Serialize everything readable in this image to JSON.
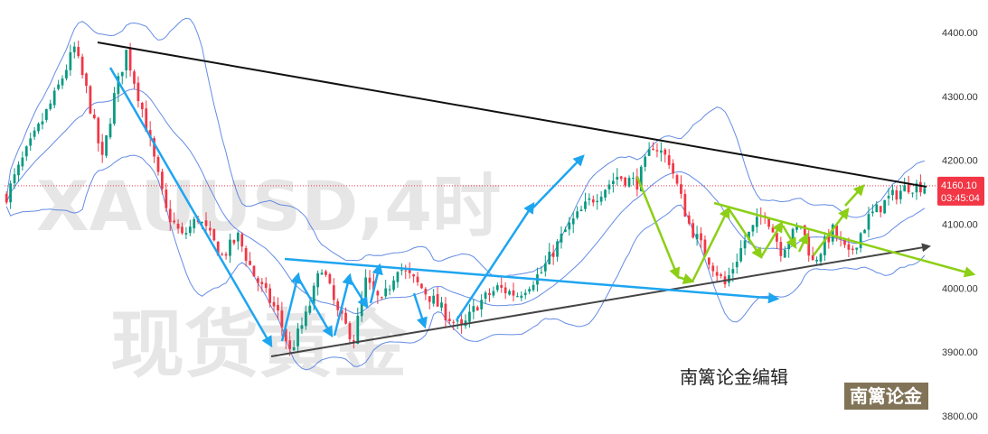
{
  "watermark": {
    "line1": "XAUUSD,4时",
    "line2": "现货黄金"
  },
  "author_label": "南篱论金编辑",
  "brand_label": "南篱论金",
  "price_tag": {
    "price": "4160.10",
    "countdown": "03:45:04",
    "color": "#f23645"
  },
  "colors": {
    "up": "#089981",
    "down": "#f23645",
    "bands": "#4a78e0",
    "trend_black": "#111111",
    "trend_gray": "#444444",
    "arrow_blue": "#1ea5f0",
    "arrow_green": "#8ccf16"
  },
  "chart_data": {
    "type": "candlestick",
    "symbol": "XAUUSD",
    "timeframe": "4时",
    "y_ticks": [
      4400,
      4300,
      4200,
      4100,
      4000,
      3900,
      3800
    ],
    "y_tick_labels": [
      "4400.00",
      "4300.00",
      "4200.00",
      "4100.00",
      "4000.00",
      "3900.00",
      "3800.00"
    ],
    "ylim": [
      3790,
      4445
    ],
    "last_price": 4160.1,
    "overlays": [
      "Bollinger Bands"
    ],
    "price_keypoints": [
      [
        0,
        4145
      ],
      [
        4,
        4200
      ],
      [
        12,
        4300
      ],
      [
        17,
        4375
      ],
      [
        20,
        4310
      ],
      [
        24,
        4200
      ],
      [
        27,
        4300
      ],
      [
        30,
        4370
      ],
      [
        34,
        4280
      ],
      [
        40,
        4120
      ],
      [
        44,
        4080
      ],
      [
        48,
        4110
      ],
      [
        54,
        4050
      ],
      [
        58,
        4080
      ],
      [
        62,
        4020
      ],
      [
        68,
        3960
      ],
      [
        71,
        3900
      ],
      [
        75,
        3955
      ],
      [
        79,
        4035
      ],
      [
        83,
        3960
      ],
      [
        87,
        3920
      ],
      [
        90,
        4010
      ],
      [
        94,
        3975
      ],
      [
        98,
        4035
      ],
      [
        104,
        4000
      ],
      [
        110,
        3960
      ],
      [
        114,
        3935
      ],
      [
        118,
        3975
      ],
      [
        123,
        4000
      ],
      [
        128,
        3990
      ],
      [
        134,
        4025
      ],
      [
        140,
        4090
      ],
      [
        146,
        4135
      ],
      [
        153,
        4175
      ],
      [
        158,
        4165
      ],
      [
        162,
        4225
      ],
      [
        166,
        4200
      ],
      [
        168,
        4160
      ],
      [
        171,
        4100
      ],
      [
        175,
        4055
      ],
      [
        180,
        4005
      ],
      [
        185,
        4075
      ],
      [
        190,
        4120
      ],
      [
        194,
        4060
      ],
      [
        199,
        4100
      ],
      [
        202,
        4040
      ],
      [
        207,
        4090
      ],
      [
        211,
        4050
      ],
      [
        216,
        4110
      ],
      [
        221,
        4140
      ],
      [
        226,
        4160
      ],
      [
        230,
        4160
      ]
    ]
  }
}
